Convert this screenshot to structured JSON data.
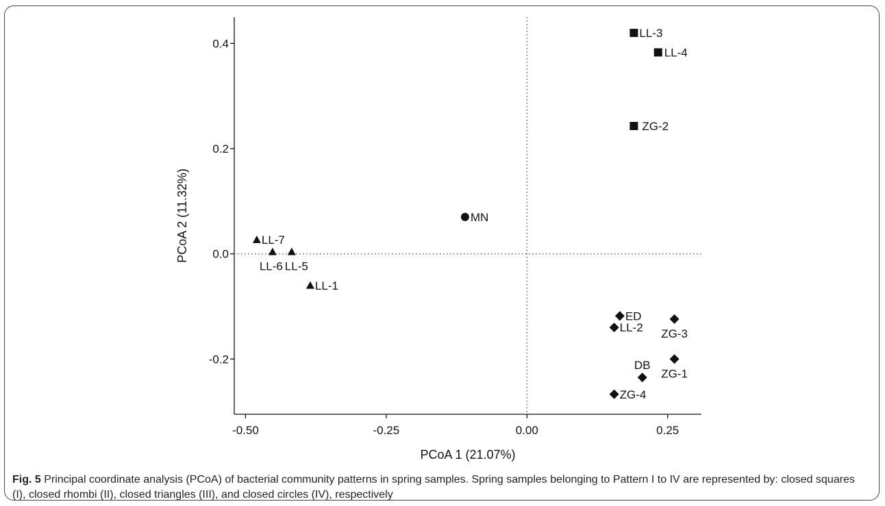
{
  "chart_data": {
    "type": "scatter",
    "title": "",
    "xlabel": "PCoA 1 (21.07%)",
    "ylabel": "PCoA 2 (11.32%)",
    "xlim": [
      -0.52,
      0.31
    ],
    "ylim": [
      -0.305,
      0.45
    ],
    "xticks": [
      "-0.50",
      "-0.25",
      "0.00",
      "0.25"
    ],
    "xtick_values": [
      -0.5,
      -0.25,
      0,
      0.25
    ],
    "yticks": [
      "0.4",
      "0.2",
      "0.0",
      "-0.2"
    ],
    "ytick_values": [
      0.4,
      0.2,
      0,
      -0.2
    ],
    "reference_lines": {
      "x": 0,
      "y": 0,
      "style": "dotted"
    },
    "grid": false,
    "series": [
      {
        "pattern": "I",
        "marker": "square",
        "points": [
          {
            "label": "LL-3",
            "x": 0.19,
            "y": 0.42
          },
          {
            "label": "LL-4",
            "x": 0.233,
            "y": 0.383
          },
          {
            "label": "ZG-2",
            "x": 0.19,
            "y": 0.243
          }
        ]
      },
      {
        "pattern": "II",
        "marker": "diamond",
        "points": [
          {
            "label": "ED",
            "x": 0.165,
            "y": -0.118
          },
          {
            "label": "LL-2",
            "x": 0.155,
            "y": -0.14
          },
          {
            "label": "ZG-3",
            "x": 0.262,
            "y": -0.124
          },
          {
            "label": "ZG-1",
            "x": 0.262,
            "y": -0.2
          },
          {
            "label": "DB",
            "x": 0.205,
            "y": -0.235
          },
          {
            "label": "ZG-4",
            "x": 0.155,
            "y": -0.267
          }
        ]
      },
      {
        "pattern": "III",
        "marker": "triangle",
        "points": [
          {
            "label": "LL-7",
            "x": -0.48,
            "y": 0.027
          },
          {
            "label": "LL-6",
            "x": -0.452,
            "y": 0.004
          },
          {
            "label": "LL-5",
            "x": -0.418,
            "y": 0.004
          },
          {
            "label": "LL-1",
            "x": -0.385,
            "y": -0.06
          }
        ]
      },
      {
        "pattern": "IV",
        "marker": "circle",
        "points": [
          {
            "label": "MN",
            "x": -0.11,
            "y": 0.07
          }
        ]
      }
    ]
  },
  "caption": {
    "figure_label": "Fig. 5",
    "text": " Principal coordinate analysis (PCoA) of bacterial community patterns in spring samples. Spring samples belonging to Pattern I to IV are represented by: closed squares (I), closed rhombi (II), closed triangles (III), and closed circles (IV), respectively"
  }
}
